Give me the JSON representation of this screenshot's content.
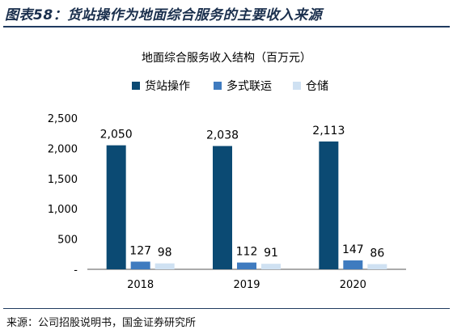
{
  "figure": {
    "title": "图表58：货站操作为地面综合服务的主要收入来源",
    "source": "来源：公司招股说明书，国金证券研究所"
  },
  "chart_data": {
    "type": "bar",
    "title": "地面综合服务收入结构（百万元）",
    "categories": [
      "2018",
      "2019",
      "2020"
    ],
    "series": [
      {
        "name": "货站操作",
        "values": [
          2050,
          2038,
          2113
        ],
        "color": "#0b4a73"
      },
      {
        "name": "多式联运",
        "values": [
          127,
          112,
          147
        ],
        "color": "#3f7bbf"
      },
      {
        "name": "仓储",
        "values": [
          98,
          91,
          86
        ],
        "color": "#cfe1f2"
      }
    ],
    "value_labels": [
      [
        "2,050",
        "2,038",
        "2,113"
      ],
      [
        "127",
        "112",
        "147"
      ],
      [
        "98",
        "91",
        "86"
      ]
    ],
    "yticks": [
      0,
      500,
      1000,
      1500,
      2000,
      2500
    ],
    "ytick_labels": [
      "-",
      "500",
      "1,000",
      "1,500",
      "2,000",
      "2,500"
    ],
    "ylim": [
      0,
      2500
    ],
    "grid": false,
    "legend_position": "top-center"
  }
}
